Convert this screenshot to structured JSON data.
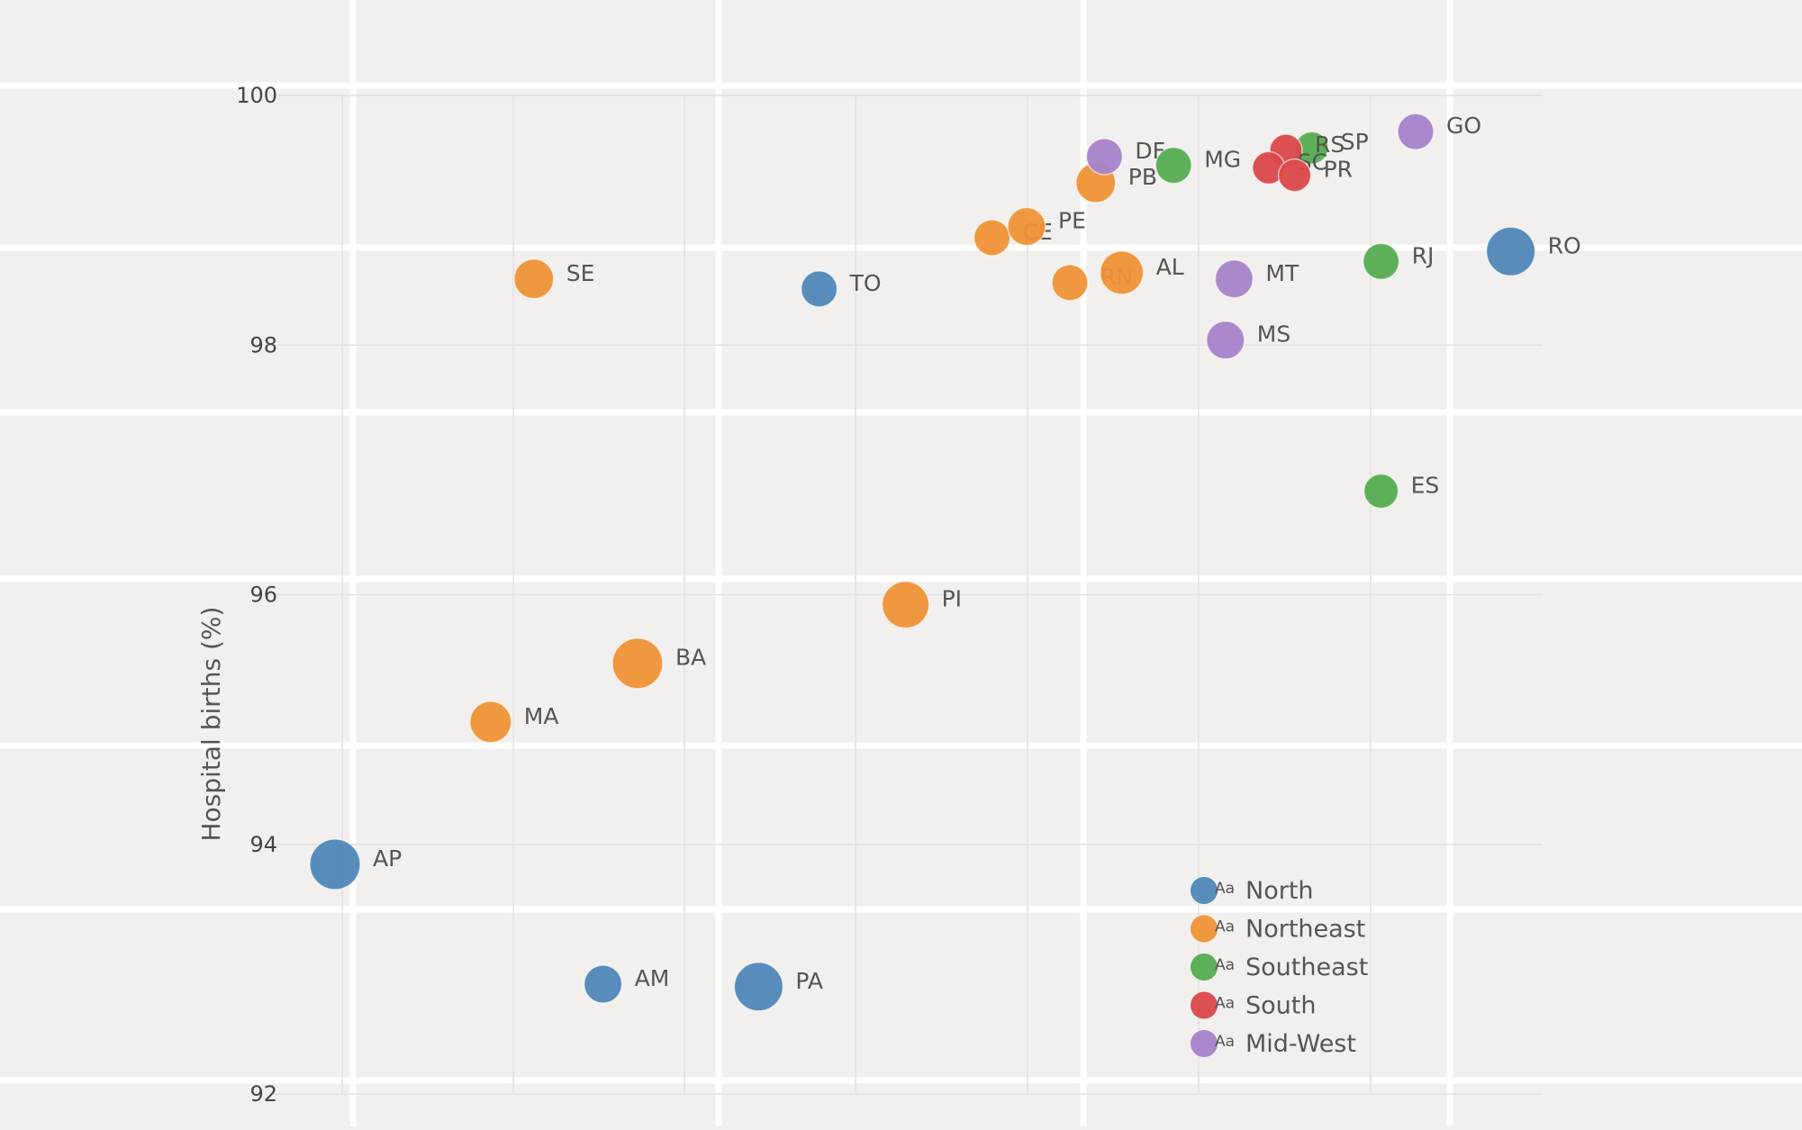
{
  "chart_data": {
    "type": "scatter",
    "ylabel": "Hospital births (%)",
    "xlabel": "",
    "ylim": [
      92,
      100
    ],
    "yticks": [
      92,
      94,
      96,
      98,
      100
    ],
    "grid": true,
    "legend_position": "bottom-right",
    "legend_marker_text": "Aa",
    "regions": [
      {
        "name": "North",
        "color": "#4e86b7"
      },
      {
        "name": "Northeast",
        "color": "#ee9236"
      },
      {
        "name": "Southeast",
        "color": "#54ac50"
      },
      {
        "name": "South",
        "color": "#db4748"
      },
      {
        "name": "Mid-West",
        "color": "#a781c9"
      }
    ],
    "points": [
      {
        "label": "AP",
        "region": "North",
        "x": 0.0,
        "y": 93.84,
        "size": 28
      },
      {
        "label": "AM",
        "region": "North",
        "x": 0.31,
        "y": 92.88,
        "size": 21
      },
      {
        "label": "PA",
        "region": "North",
        "x": 0.49,
        "y": 92.86,
        "size": 27
      },
      {
        "label": "TO",
        "region": "North",
        "x": 0.56,
        "y": 98.45,
        "size": 20
      },
      {
        "label": "RO",
        "region": "North",
        "x": 1.36,
        "y": 98.75,
        "size": 27
      },
      {
        "label": "SE",
        "region": "Northeast",
        "x": 0.23,
        "y": 98.53,
        "size": 22
      },
      {
        "label": "MA",
        "region": "Northeast",
        "x": 0.18,
        "y": 94.98,
        "size": 23
      },
      {
        "label": "BA",
        "region": "Northeast",
        "x": 0.35,
        "y": 95.45,
        "size": 28
      },
      {
        "label": "PI",
        "region": "Northeast",
        "x": 0.66,
        "y": 95.92,
        "size": 26
      },
      {
        "label": "CE",
        "region": "Northeast",
        "x": 0.76,
        "y": 98.86,
        "size": 20
      },
      {
        "label": "PE",
        "region": "Northeast",
        "x": 0.8,
        "y": 98.95,
        "size": 21
      },
      {
        "label": "RN",
        "region": "Northeast",
        "x": 0.85,
        "y": 98.5,
        "size": 20
      },
      {
        "label": "AL",
        "region": "Northeast",
        "x": 0.91,
        "y": 98.58,
        "size": 24
      },
      {
        "label": "PB",
        "region": "Northeast",
        "x": 0.88,
        "y": 99.3,
        "size": 22
      },
      {
        "label": "MG",
        "region": "Southeast",
        "x": 0.97,
        "y": 99.44,
        "size": 20
      },
      {
        "label": "SP",
        "region": "Southeast",
        "x": 1.13,
        "y": 99.58,
        "size": 18
      },
      {
        "label": "RJ",
        "region": "Southeast",
        "x": 1.21,
        "y": 98.67,
        "size": 20
      },
      {
        "label": "ES",
        "region": "Southeast",
        "x": 1.21,
        "y": 96.83,
        "size": 19
      },
      {
        "label": "RS",
        "region": "South",
        "x": 1.1,
        "y": 99.56,
        "size": 18
      },
      {
        "label": "SC",
        "region": "South",
        "x": 1.08,
        "y": 99.42,
        "size": 18
      },
      {
        "label": "PR",
        "region": "South",
        "x": 1.11,
        "y": 99.36,
        "size": 18
      },
      {
        "label": "DF",
        "region": "Mid-West",
        "x": 0.89,
        "y": 99.51,
        "size": 20
      },
      {
        "label": "MT",
        "region": "Mid-West",
        "x": 1.04,
        "y": 98.53,
        "size": 21
      },
      {
        "label": "MS",
        "region": "Mid-West",
        "x": 1.03,
        "y": 98.04,
        "size": 21
      },
      {
        "label": "GO",
        "region": "Mid-West",
        "x": 1.25,
        "y": 99.71,
        "size": 20
      }
    ]
  }
}
